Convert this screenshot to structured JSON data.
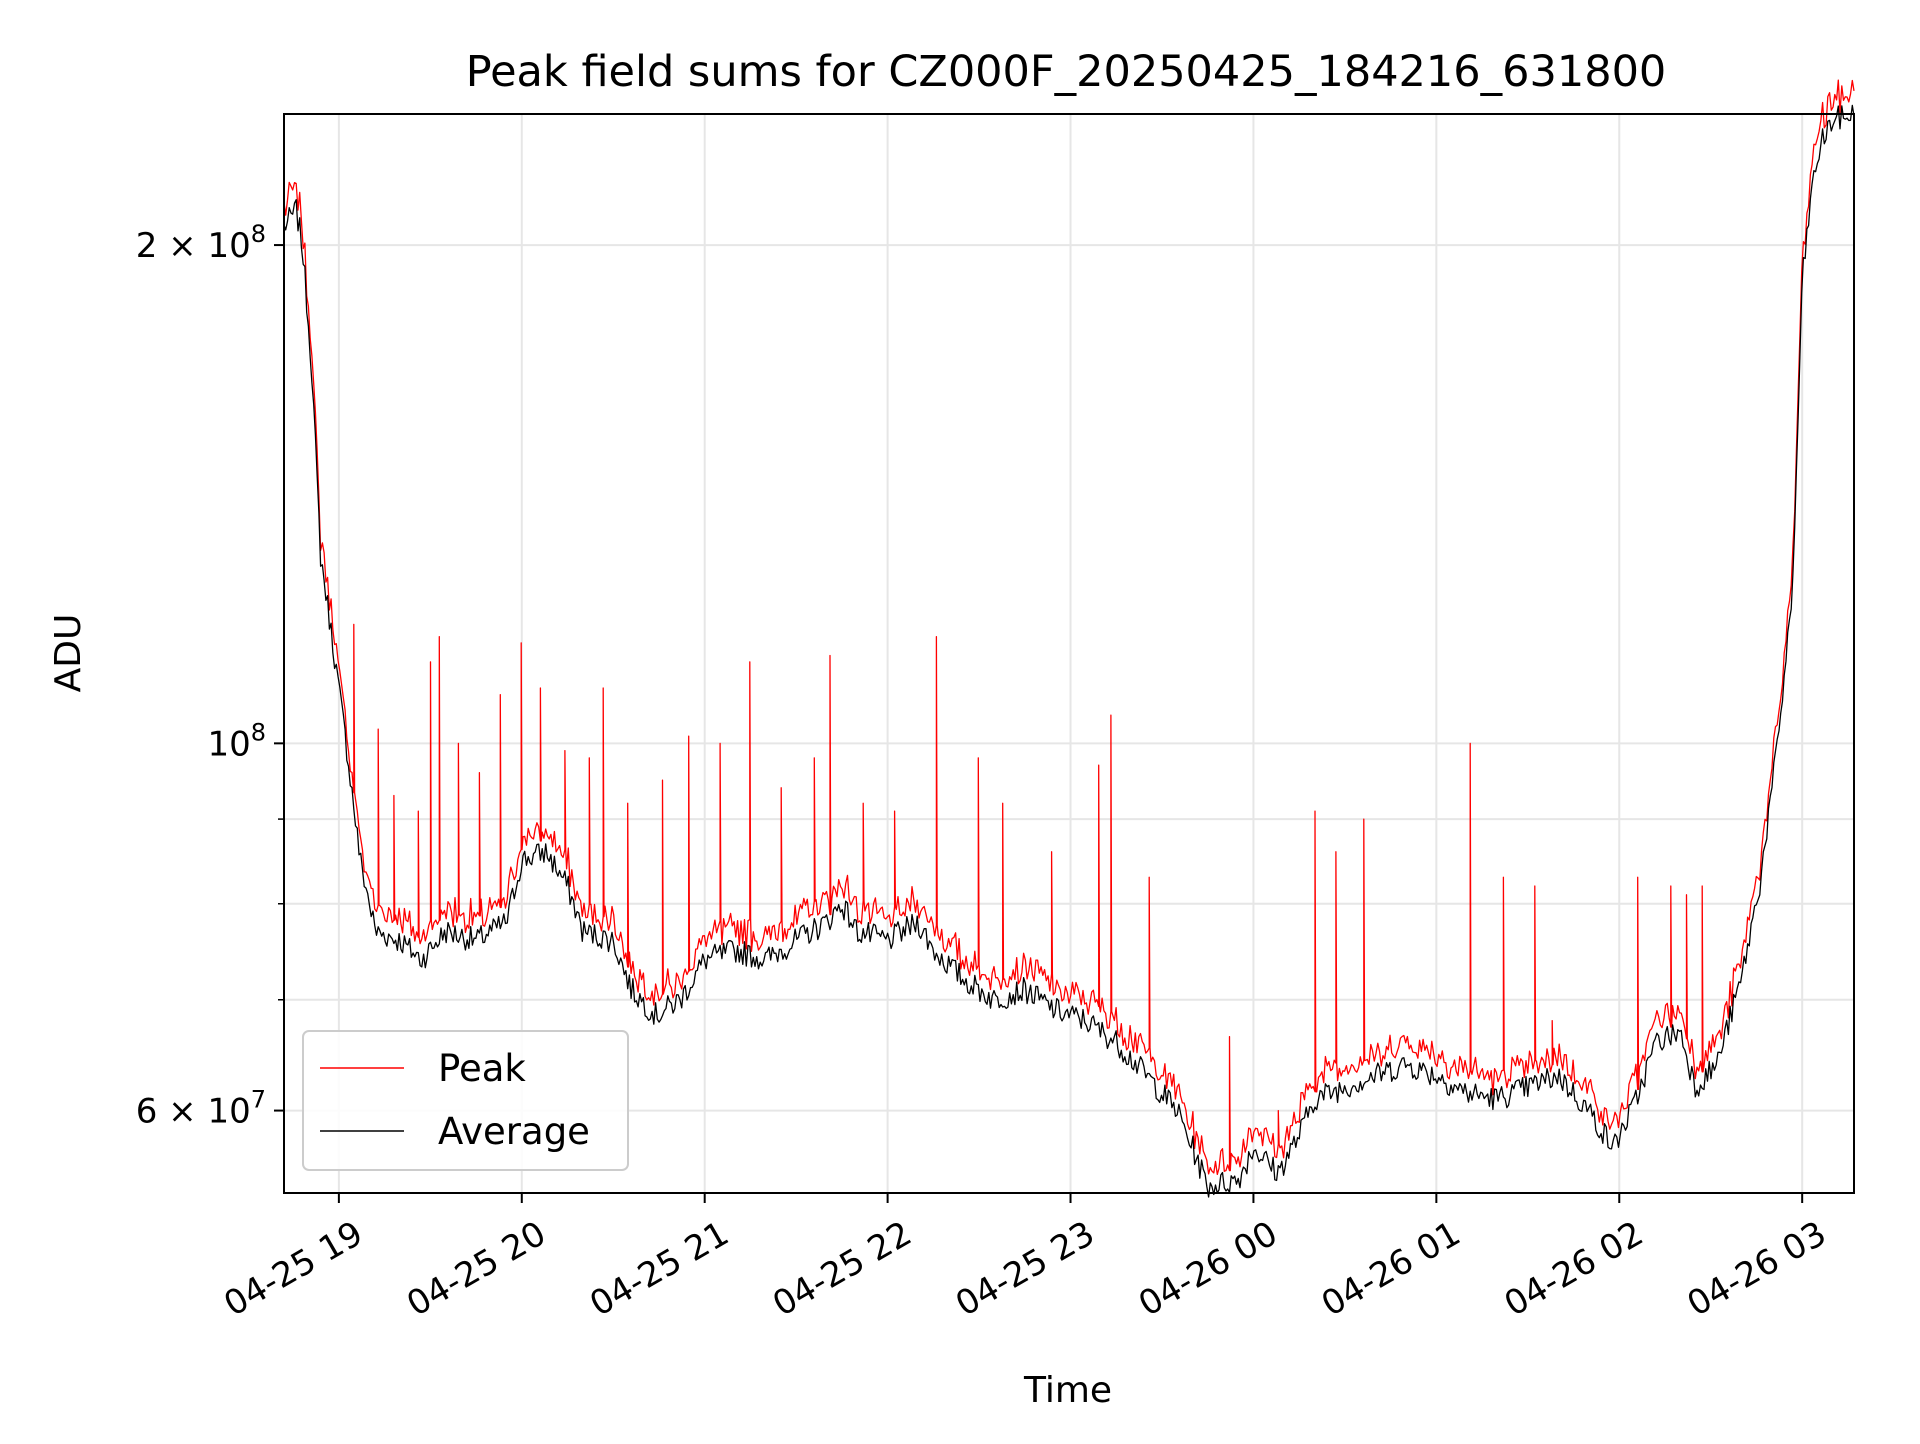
{
  "chart_data": {
    "type": "line",
    "title": "Peak field sums for CZ000F_20250425_184216_631800",
    "xlabel": "Time",
    "ylabel": "ADU",
    "y_scale": "log",
    "grid": true,
    "legend_position": "lower-left",
    "xlim": [
      "2025-04-25 18:42",
      "2025-04-26 03:17"
    ],
    "ylim": [
      53500000,
      240000000
    ],
    "x_ticks": [
      {
        "t": "2025-04-25 19:00",
        "label": "04-25 19"
      },
      {
        "t": "2025-04-25 20:00",
        "label": "04-25 20"
      },
      {
        "t": "2025-04-25 21:00",
        "label": "04-25 21"
      },
      {
        "t": "2025-04-25 22:00",
        "label": "04-25 22"
      },
      {
        "t": "2025-04-25 23:00",
        "label": "04-25 23"
      },
      {
        "t": "2025-04-26 00:00",
        "label": "04-26 00"
      },
      {
        "t": "2025-04-26 01:00",
        "label": "04-26 01"
      },
      {
        "t": "2025-04-26 02:00",
        "label": "04-26 02"
      },
      {
        "t": "2025-04-26 03:00",
        "label": "04-26 03"
      }
    ],
    "y_ticks_major": [
      {
        "v": 100000000,
        "base": "10",
        "exp": "8",
        "coef": ""
      },
      {
        "v": 200000000,
        "base": "10",
        "exp": "8",
        "coef": "2 × "
      },
      {
        "v": 60000000,
        "base": "10",
        "exp": "7",
        "coef": "6 × "
      }
    ],
    "y_ticks_minor": [
      70000000,
      80000000,
      90000000
    ],
    "series": [
      {
        "name": "Average",
        "color": "#000000",
        "points": [
          [
            "2025-04-25 18:42",
            205000000
          ],
          [
            "2025-04-25 18:46",
            210000000
          ],
          [
            "2025-04-25 18:48",
            200000000
          ],
          [
            "2025-04-25 18:51",
            170000000
          ],
          [
            "2025-04-25 18:54",
            130000000
          ],
          [
            "2025-04-25 18:58",
            115000000
          ],
          [
            "2025-04-25 19:03",
            98000000
          ],
          [
            "2025-04-25 19:07",
            85000000
          ],
          [
            "2025-04-25 19:12",
            77000000
          ],
          [
            "2025-04-25 19:20",
            76000000
          ],
          [
            "2025-04-25 19:27",
            74000000
          ],
          [
            "2025-04-25 19:35",
            77000000
          ],
          [
            "2025-04-25 19:45",
            76000000
          ],
          [
            "2025-04-25 19:55",
            78000000
          ],
          [
            "2025-04-25 20:00",
            85000000
          ],
          [
            "2025-04-25 20:08",
            86000000
          ],
          [
            "2025-04-25 20:15",
            82000000
          ],
          [
            "2025-04-25 20:20",
            77000000
          ],
          [
            "2025-04-25 20:30",
            76000000
          ],
          [
            "2025-04-25 20:36",
            71000000
          ],
          [
            "2025-04-25 20:44",
            68500000
          ],
          [
            "2025-04-25 20:52",
            70000000
          ],
          [
            "2025-04-25 21:00",
            74000000
          ],
          [
            "2025-04-25 21:10",
            75000000
          ],
          [
            "2025-04-25 21:20",
            74000000
          ],
          [
            "2025-04-25 21:30",
            76000000
          ],
          [
            "2025-04-25 21:40",
            78000000
          ],
          [
            "2025-04-25 21:45",
            80000000
          ],
          [
            "2025-04-25 21:50",
            77000000
          ],
          [
            "2025-04-25 22:00",
            76000000
          ],
          [
            "2025-04-25 22:10",
            78000000
          ],
          [
            "2025-04-25 22:15",
            75000000
          ],
          [
            "2025-04-25 22:25",
            72000000
          ],
          [
            "2025-04-25 22:35",
            70000000
          ],
          [
            "2025-04-25 22:45",
            71000000
          ],
          [
            "2025-04-25 22:55",
            69000000
          ],
          [
            "2025-04-25 23:05",
            68000000
          ],
          [
            "2025-04-25 23:15",
            66000000
          ],
          [
            "2025-04-25 23:25",
            63000000
          ],
          [
            "2025-04-25 23:35",
            60000000
          ],
          [
            "2025-04-25 23:40",
            57000000
          ],
          [
            "2025-04-25 23:45",
            54000000
          ],
          [
            "2025-04-25 23:55",
            54500000
          ],
          [
            "2025-04-26 00:00",
            57000000
          ],
          [
            "2025-04-26 00:08",
            55000000
          ],
          [
            "2025-04-26 00:15",
            58000000
          ],
          [
            "2025-04-26 00:20",
            61000000
          ],
          [
            "2025-04-26 00:30",
            62000000
          ],
          [
            "2025-04-26 00:40",
            63000000
          ],
          [
            "2025-04-26 00:50",
            64000000
          ],
          [
            "2025-04-26 01:00",
            63000000
          ],
          [
            "2025-04-26 01:10",
            61500000
          ],
          [
            "2025-04-26 01:20",
            61000000
          ],
          [
            "2025-04-26 01:30",
            62000000
          ],
          [
            "2025-04-26 01:40",
            63000000
          ],
          [
            "2025-04-26 01:50",
            60000000
          ],
          [
            "2025-04-26 01:58",
            57000000
          ],
          [
            "2025-04-26 02:05",
            60500000
          ],
          [
            "2025-04-26 02:12",
            66000000
          ],
          [
            "2025-04-26 02:20",
            67000000
          ],
          [
            "2025-04-26 02:25",
            62000000
          ],
          [
            "2025-04-26 02:32",
            64000000
          ],
          [
            "2025-04-26 02:40",
            72000000
          ],
          [
            "2025-04-26 02:46",
            82000000
          ],
          [
            "2025-04-26 02:52",
            100000000
          ],
          [
            "2025-04-26 02:57",
            125000000
          ],
          [
            "2025-04-26 03:00",
            190000000
          ],
          [
            "2025-04-26 03:03",
            215000000
          ],
          [
            "2025-04-26 03:06",
            230000000
          ],
          [
            "2025-04-26 03:10",
            238000000
          ],
          [
            "2025-04-26 03:17",
            240000000
          ]
        ]
      },
      {
        "name": "Peak",
        "color": "#ff0000",
        "offset_ratio": 1.02,
        "spikes": [
          [
            "2025-04-25 19:05",
            118000000
          ],
          [
            "2025-04-25 19:13",
            102000000
          ],
          [
            "2025-04-25 19:18",
            93000000
          ],
          [
            "2025-04-25 19:26",
            91000000
          ],
          [
            "2025-04-25 19:30",
            112000000
          ],
          [
            "2025-04-25 19:33",
            116000000
          ],
          [
            "2025-04-25 19:39",
            100000000
          ],
          [
            "2025-04-25 19:46",
            96000000
          ],
          [
            "2025-04-25 19:53",
            107000000
          ],
          [
            "2025-04-25 20:00",
            115000000
          ],
          [
            "2025-04-25 20:06",
            108000000
          ],
          [
            "2025-04-25 20:14",
            99000000
          ],
          [
            "2025-04-25 20:22",
            98000000
          ],
          [
            "2025-04-25 20:27",
            108000000
          ],
          [
            "2025-04-25 20:35",
            92000000
          ],
          [
            "2025-04-25 20:46",
            95000000
          ],
          [
            "2025-04-25 20:55",
            101000000
          ],
          [
            "2025-04-25 21:05",
            100000000
          ],
          [
            "2025-04-25 21:15",
            112000000
          ],
          [
            "2025-04-25 21:25",
            94000000
          ],
          [
            "2025-04-25 21:36",
            98000000
          ],
          [
            "2025-04-25 21:41",
            113000000
          ],
          [
            "2025-04-25 21:52",
            92000000
          ],
          [
            "2025-04-25 22:02",
            91000000
          ],
          [
            "2025-04-25 22:16",
            116000000
          ],
          [
            "2025-04-25 22:30",
            98000000
          ],
          [
            "2025-04-25 22:38",
            92000000
          ],
          [
            "2025-04-25 22:54",
            86000000
          ],
          [
            "2025-04-25 23:09",
            97000000
          ],
          [
            "2025-04-25 23:13",
            104000000
          ],
          [
            "2025-04-25 23:26",
            83000000
          ],
          [
            "2025-04-25 23:52",
            66500000
          ],
          [
            "2025-04-26 00:08",
            60000000
          ],
          [
            "2025-04-26 00:20",
            91000000
          ],
          [
            "2025-04-26 00:27",
            86000000
          ],
          [
            "2025-04-26 00:36",
            90000000
          ],
          [
            "2025-04-26 01:11",
            100000000
          ],
          [
            "2025-04-26 01:22",
            83000000
          ],
          [
            "2025-04-26 01:32",
            82000000
          ],
          [
            "2025-04-26 01:38",
            68000000
          ],
          [
            "2025-04-26 02:06",
            83000000
          ],
          [
            "2025-04-26 02:17",
            82000000
          ],
          [
            "2025-04-26 02:22",
            81000000
          ],
          [
            "2025-04-26 02:27",
            82000000
          ]
        ]
      }
    ]
  }
}
